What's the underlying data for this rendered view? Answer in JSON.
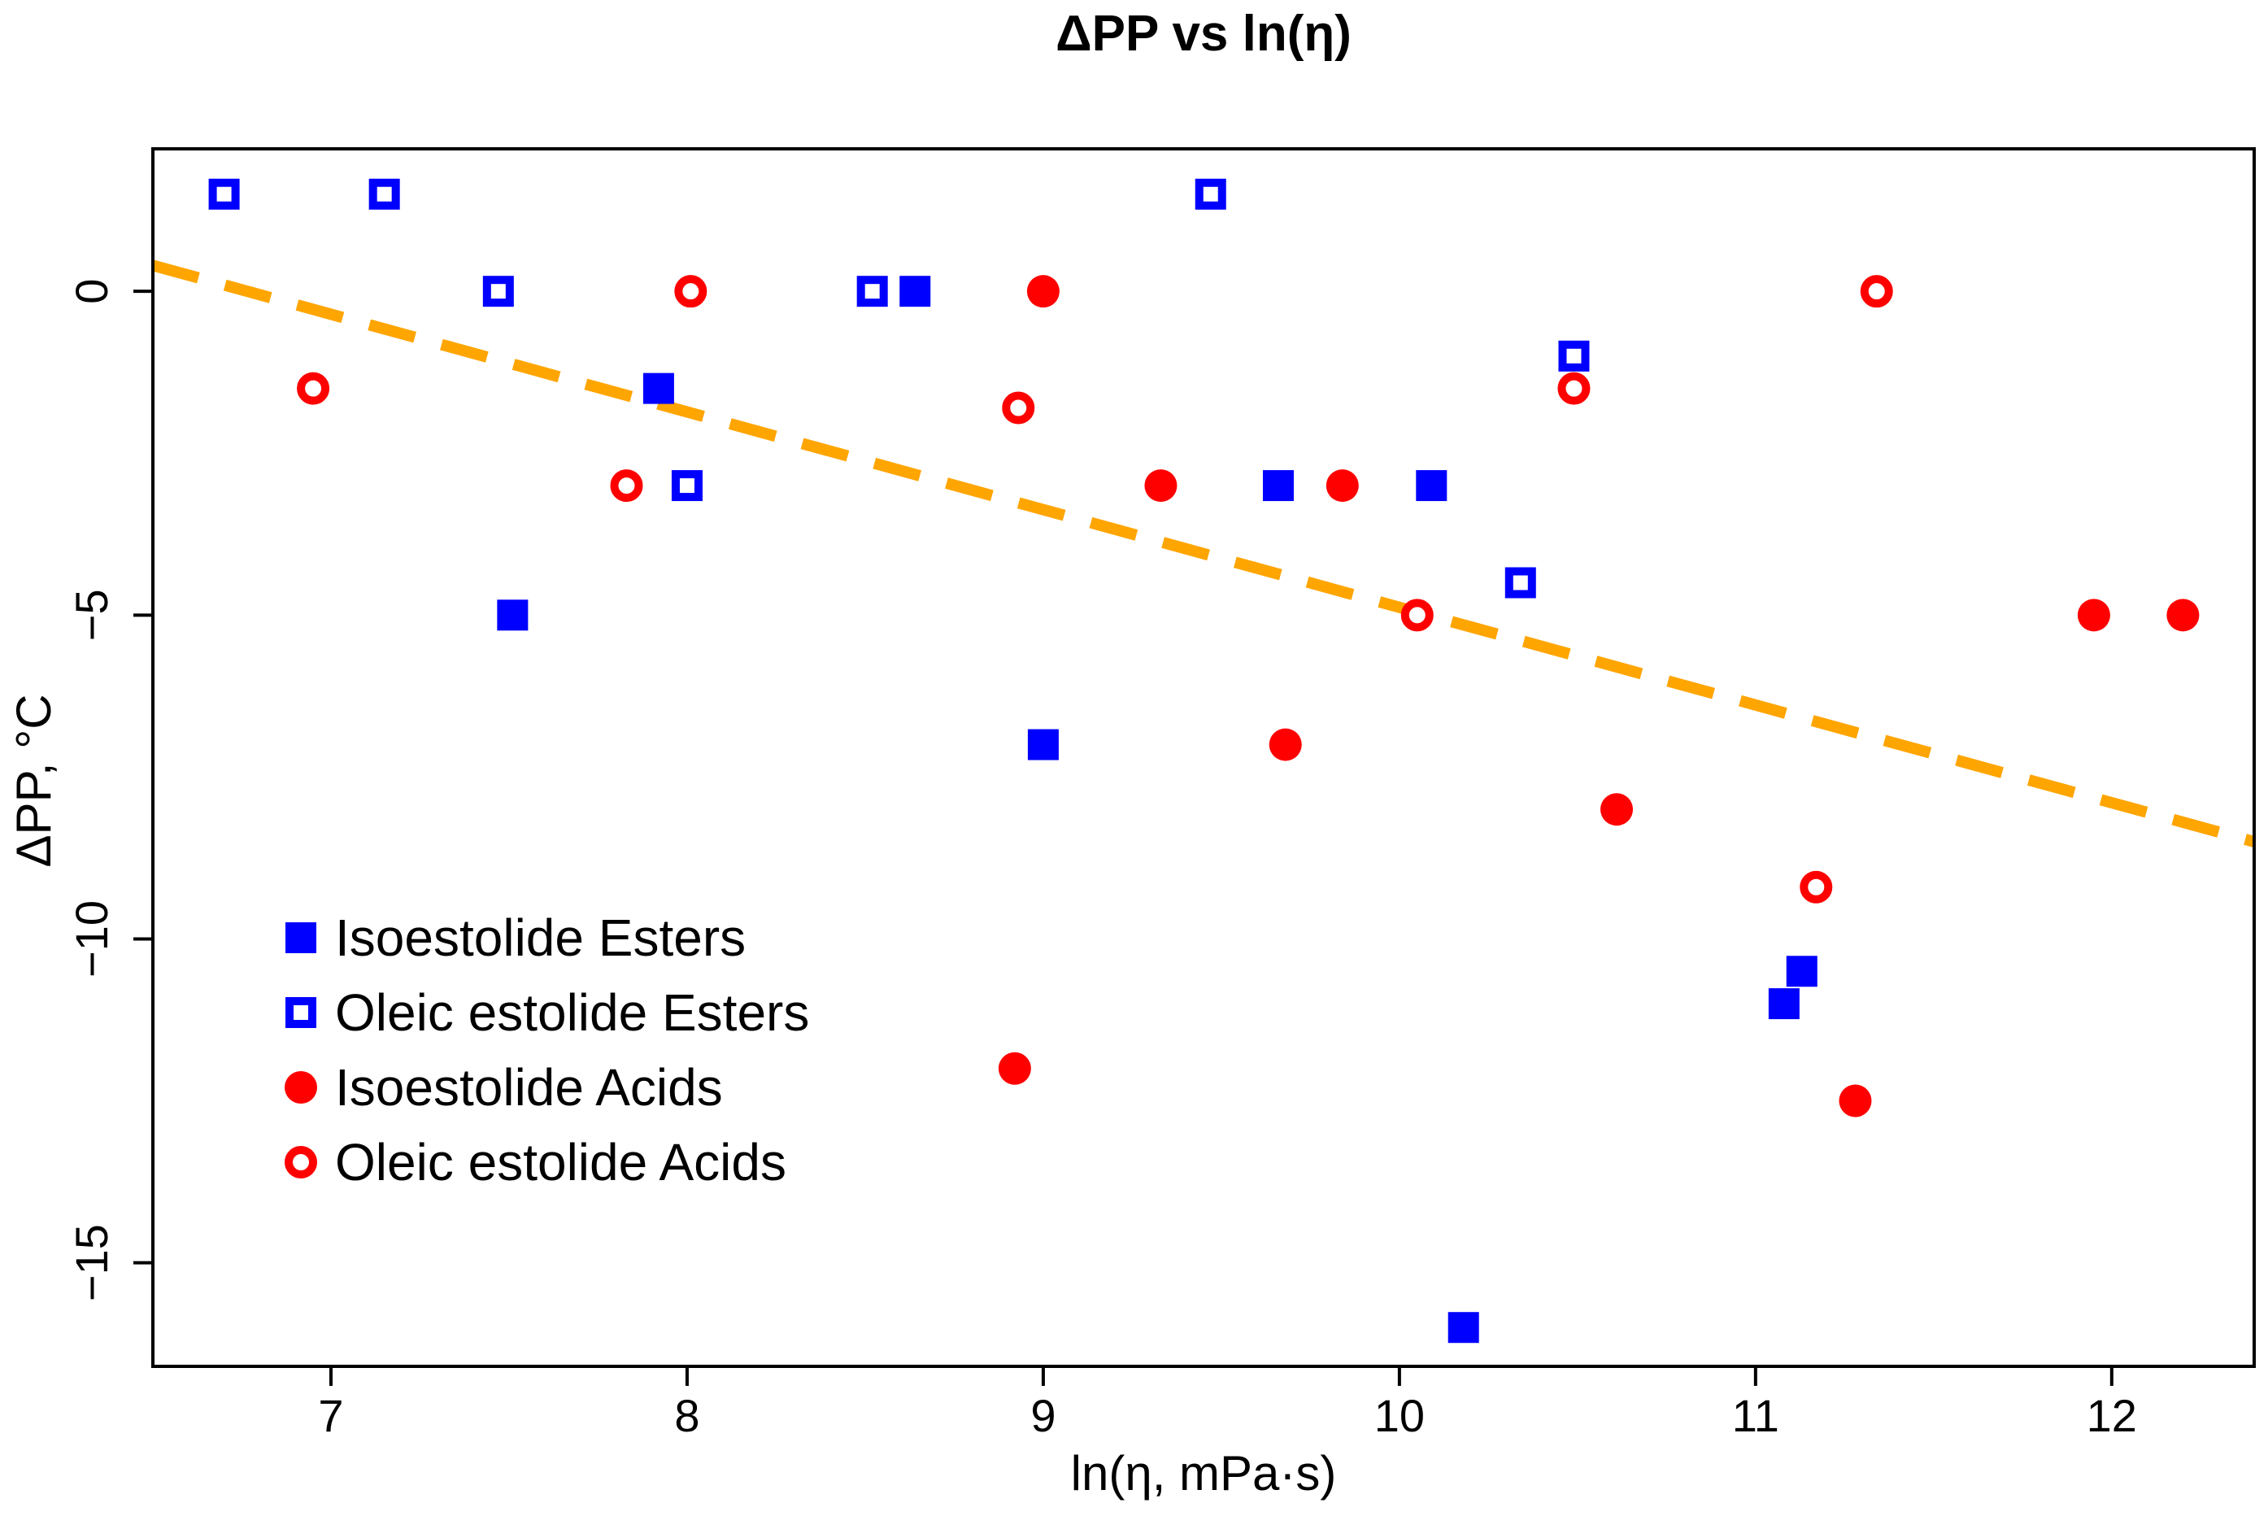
{
  "chart_data": {
    "type": "scatter",
    "title": "ΔPP vs ln(η)",
    "xlabel": "ln(η, mPa·s)",
    "ylabel": "ΔPP, °C",
    "xlim": [
      6.5,
      12.4
    ],
    "ylim": [
      -16.6,
      2.2
    ],
    "x_ticks": [
      7,
      8,
      9,
      10,
      11,
      12
    ],
    "x_tick_labels": [
      "7",
      "8",
      "9",
      "10",
      "11",
      "12"
    ],
    "y_ticks": [
      0,
      -5,
      -10,
      -15
    ],
    "y_tick_labels": [
      "0",
      "−5",
      "−10",
      "−15"
    ],
    "grid": false,
    "legend_position": "bottom-left",
    "series": [
      {
        "name": "Isoestolide Esters",
        "marker": "filled-square",
        "color": "#0000ff",
        "points": [
          [
            7.51,
            -5.0
          ],
          [
            7.92,
            -1.5
          ],
          [
            8.64,
            0.0
          ],
          [
            9.0,
            -7.0
          ],
          [
            9.66,
            -3.0
          ],
          [
            10.09,
            -3.0
          ],
          [
            10.18,
            -16.0
          ],
          [
            11.08,
            -11.0
          ],
          [
            11.13,
            -10.5
          ]
        ]
      },
      {
        "name": "Oleic estolide Esters",
        "marker": "open-square",
        "color": "#0000ff",
        "points": [
          [
            6.7,
            1.5
          ],
          [
            7.15,
            1.5
          ],
          [
            7.47,
            0.0
          ],
          [
            8.0,
            -3.0
          ],
          [
            8.52,
            0.0
          ],
          [
            9.47,
            1.5
          ],
          [
            10.34,
            -4.5
          ],
          [
            10.49,
            -1.0
          ]
        ]
      },
      {
        "name": "Isoestolide Acids",
        "marker": "filled-circle",
        "color": "#ff0000",
        "points": [
          [
            8.92,
            -12.0
          ],
          [
            9.0,
            0.0
          ],
          [
            9.33,
            -3.0
          ],
          [
            9.68,
            -7.0
          ],
          [
            9.84,
            -3.0
          ],
          [
            10.61,
            -8.0
          ],
          [
            11.28,
            -12.5
          ],
          [
            11.95,
            -5.0
          ],
          [
            12.2,
            -5.0
          ]
        ]
      },
      {
        "name": "Oleic estolide Acids",
        "marker": "open-circle",
        "color": "#ff0000",
        "points": [
          [
            6.95,
            -1.5
          ],
          [
            7.83,
            -3.0
          ],
          [
            8.01,
            0.0
          ],
          [
            8.93,
            -1.8
          ],
          [
            10.05,
            -5.0
          ],
          [
            10.49,
            -1.5
          ],
          [
            11.17,
            -9.2
          ],
          [
            11.34,
            0.0
          ]
        ]
      }
    ],
    "trendline": {
      "style": "dashed",
      "color": "#ffa500",
      "points": [
        [
          6.5,
          0.4
        ],
        [
          12.4,
          -8.5
        ]
      ]
    }
  }
}
